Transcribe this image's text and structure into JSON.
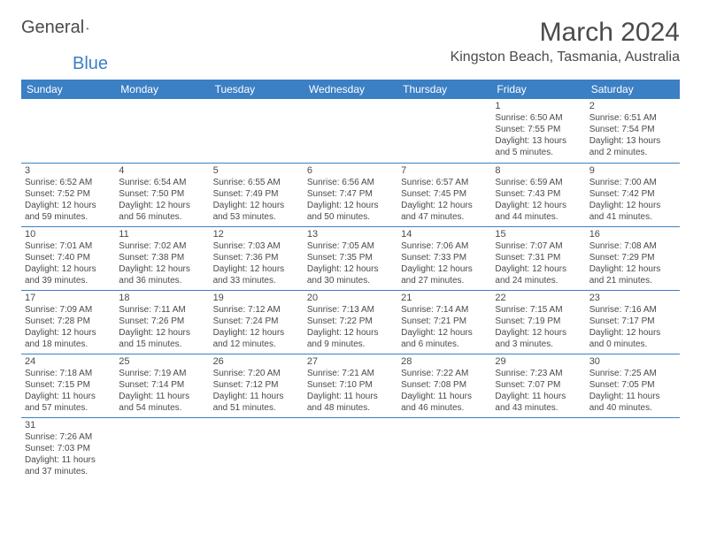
{
  "logo": {
    "part1": "General",
    "part2": "Blue"
  },
  "title": "March 2024",
  "location": "Kingston Beach, Tasmania, Australia",
  "colors": {
    "header_bg": "#3b7fc4",
    "header_text": "#ffffff",
    "text": "#4a4a4a",
    "rule": "#3b7fc4",
    "background": "#ffffff"
  },
  "weekdays": [
    "Sunday",
    "Monday",
    "Tuesday",
    "Wednesday",
    "Thursday",
    "Friday",
    "Saturday"
  ],
  "days": [
    {
      "n": 1,
      "sunrise": "6:50 AM",
      "sunset": "7:55 PM",
      "daylight": "13 hours and 5 minutes."
    },
    {
      "n": 2,
      "sunrise": "6:51 AM",
      "sunset": "7:54 PM",
      "daylight": "13 hours and 2 minutes."
    },
    {
      "n": 3,
      "sunrise": "6:52 AM",
      "sunset": "7:52 PM",
      "daylight": "12 hours and 59 minutes."
    },
    {
      "n": 4,
      "sunrise": "6:54 AM",
      "sunset": "7:50 PM",
      "daylight": "12 hours and 56 minutes."
    },
    {
      "n": 5,
      "sunrise": "6:55 AM",
      "sunset": "7:49 PM",
      "daylight": "12 hours and 53 minutes."
    },
    {
      "n": 6,
      "sunrise": "6:56 AM",
      "sunset": "7:47 PM",
      "daylight": "12 hours and 50 minutes."
    },
    {
      "n": 7,
      "sunrise": "6:57 AM",
      "sunset": "7:45 PM",
      "daylight": "12 hours and 47 minutes."
    },
    {
      "n": 8,
      "sunrise": "6:59 AM",
      "sunset": "7:43 PM",
      "daylight": "12 hours and 44 minutes."
    },
    {
      "n": 9,
      "sunrise": "7:00 AM",
      "sunset": "7:42 PM",
      "daylight": "12 hours and 41 minutes."
    },
    {
      "n": 10,
      "sunrise": "7:01 AM",
      "sunset": "7:40 PM",
      "daylight": "12 hours and 39 minutes."
    },
    {
      "n": 11,
      "sunrise": "7:02 AM",
      "sunset": "7:38 PM",
      "daylight": "12 hours and 36 minutes."
    },
    {
      "n": 12,
      "sunrise": "7:03 AM",
      "sunset": "7:36 PM",
      "daylight": "12 hours and 33 minutes."
    },
    {
      "n": 13,
      "sunrise": "7:05 AM",
      "sunset": "7:35 PM",
      "daylight": "12 hours and 30 minutes."
    },
    {
      "n": 14,
      "sunrise": "7:06 AM",
      "sunset": "7:33 PM",
      "daylight": "12 hours and 27 minutes."
    },
    {
      "n": 15,
      "sunrise": "7:07 AM",
      "sunset": "7:31 PM",
      "daylight": "12 hours and 24 minutes."
    },
    {
      "n": 16,
      "sunrise": "7:08 AM",
      "sunset": "7:29 PM",
      "daylight": "12 hours and 21 minutes."
    },
    {
      "n": 17,
      "sunrise": "7:09 AM",
      "sunset": "7:28 PM",
      "daylight": "12 hours and 18 minutes."
    },
    {
      "n": 18,
      "sunrise": "7:11 AM",
      "sunset": "7:26 PM",
      "daylight": "12 hours and 15 minutes."
    },
    {
      "n": 19,
      "sunrise": "7:12 AM",
      "sunset": "7:24 PM",
      "daylight": "12 hours and 12 minutes."
    },
    {
      "n": 20,
      "sunrise": "7:13 AM",
      "sunset": "7:22 PM",
      "daylight": "12 hours and 9 minutes."
    },
    {
      "n": 21,
      "sunrise": "7:14 AM",
      "sunset": "7:21 PM",
      "daylight": "12 hours and 6 minutes."
    },
    {
      "n": 22,
      "sunrise": "7:15 AM",
      "sunset": "7:19 PM",
      "daylight": "12 hours and 3 minutes."
    },
    {
      "n": 23,
      "sunrise": "7:16 AM",
      "sunset": "7:17 PM",
      "daylight": "12 hours and 0 minutes."
    },
    {
      "n": 24,
      "sunrise": "7:18 AM",
      "sunset": "7:15 PM",
      "daylight": "11 hours and 57 minutes."
    },
    {
      "n": 25,
      "sunrise": "7:19 AM",
      "sunset": "7:14 PM",
      "daylight": "11 hours and 54 minutes."
    },
    {
      "n": 26,
      "sunrise": "7:20 AM",
      "sunset": "7:12 PM",
      "daylight": "11 hours and 51 minutes."
    },
    {
      "n": 27,
      "sunrise": "7:21 AM",
      "sunset": "7:10 PM",
      "daylight": "11 hours and 48 minutes."
    },
    {
      "n": 28,
      "sunrise": "7:22 AM",
      "sunset": "7:08 PM",
      "daylight": "11 hours and 46 minutes."
    },
    {
      "n": 29,
      "sunrise": "7:23 AM",
      "sunset": "7:07 PM",
      "daylight": "11 hours and 43 minutes."
    },
    {
      "n": 30,
      "sunrise": "7:25 AM",
      "sunset": "7:05 PM",
      "daylight": "11 hours and 40 minutes."
    },
    {
      "n": 31,
      "sunrise": "7:26 AM",
      "sunset": "7:03 PM",
      "daylight": "11 hours and 37 minutes."
    }
  ],
  "first_weekday_index": 5,
  "labels": {
    "sunrise_prefix": "Sunrise: ",
    "sunset_prefix": "Sunset: ",
    "daylight_prefix": "Daylight: "
  }
}
